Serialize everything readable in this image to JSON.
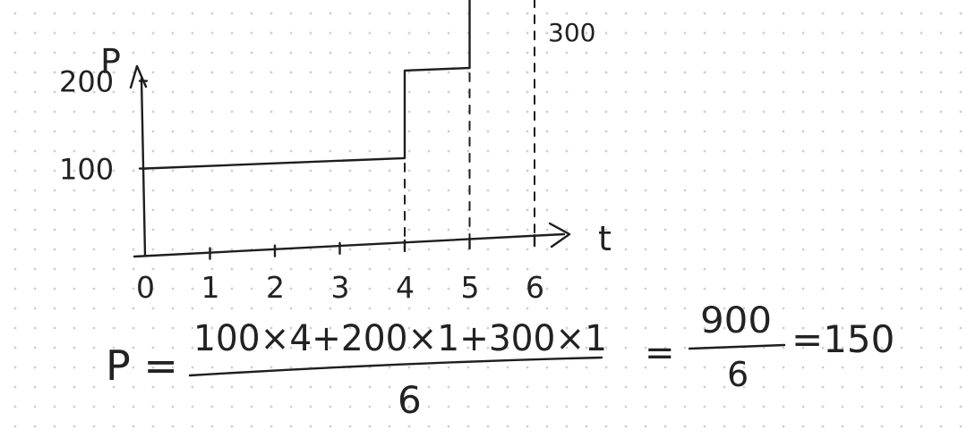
{
  "chart_data": {
    "type": "line",
    "xlabel": "t",
    "ylabel": "P",
    "x_ticks": [
      "0",
      "1",
      "2",
      "3",
      "4",
      "5",
      "6"
    ],
    "y_ticks": [
      "100",
      "200"
    ],
    "xlim": [
      0,
      6
    ],
    "ylim": [
      0,
      300
    ],
    "series": [
      {
        "x": [
          0,
          4,
          4,
          5,
          5,
          6
        ],
        "y": [
          100,
          100,
          200,
          200,
          300,
          300
        ]
      }
    ],
    "annotations": [
      "300"
    ],
    "grid": false
  },
  "formula": {
    "lhs": "P =",
    "numerator": "100×4+200×1+300×1",
    "denominator": "6",
    "eq1": "=",
    "fraction2_numerator": "900",
    "fraction2_denominator": "6",
    "result": "=150"
  }
}
